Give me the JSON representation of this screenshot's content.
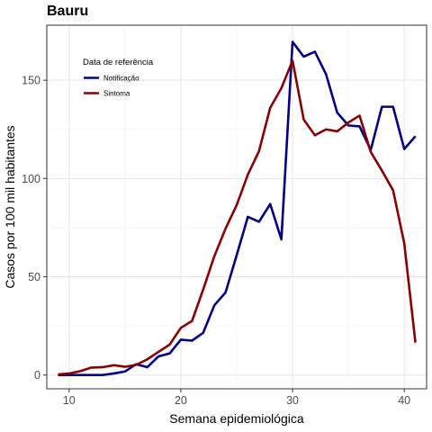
{
  "chart_data": {
    "type": "line",
    "title": "Bauru",
    "xlabel": "Semana epidemiológica",
    "ylabel": "Casos por 100 mil habitantes",
    "xlim": [
      8,
      42
    ],
    "ylim": [
      -7,
      178
    ],
    "xticks": [
      10,
      20,
      30,
      40
    ],
    "yticks": [
      0,
      50,
      100,
      150
    ],
    "grid": true,
    "legend": {
      "title": "Data de referência",
      "placement": "top-left"
    },
    "series": [
      {
        "name": "Notificação",
        "color": "#00008b",
        "x": [
          9,
          10,
          11,
          12,
          13,
          14,
          15,
          16,
          17,
          18,
          19,
          20,
          21,
          22,
          23,
          24,
          25,
          26,
          27,
          28,
          29,
          30,
          31,
          32,
          33,
          34,
          35,
          36,
          37,
          38,
          39,
          40,
          41
        ],
        "y": [
          0,
          0,
          0,
          0,
          0,
          0.8,
          1.8,
          5.5,
          4,
          9.5,
          11,
          18,
          17.5,
          21.5,
          35.5,
          42,
          61,
          80.5,
          78,
          87,
          69,
          169.5,
          162,
          164.5,
          153,
          133.5,
          127,
          126.5,
          114.5,
          136.5,
          136.5,
          115,
          121.5
        ]
      },
      {
        "name": "Sintoma",
        "color": "#8b0000",
        "x": [
          9,
          10,
          11,
          12,
          13,
          14,
          15,
          16,
          17,
          18,
          19,
          20,
          21,
          22,
          23,
          24,
          25,
          26,
          27,
          28,
          29,
          30,
          31,
          32,
          33,
          34,
          35,
          36,
          37,
          38,
          39,
          40,
          41
        ],
        "y": [
          0.3,
          0.8,
          2,
          3.8,
          4,
          5,
          4.2,
          5.2,
          8,
          11.8,
          15.5,
          24,
          27.5,
          43.5,
          60.5,
          74.5,
          86.5,
          102,
          114,
          136,
          146,
          160,
          130,
          122,
          125,
          124,
          128.5,
          132,
          113.5,
          104,
          94,
          67,
          16.5
        ]
      }
    ]
  }
}
